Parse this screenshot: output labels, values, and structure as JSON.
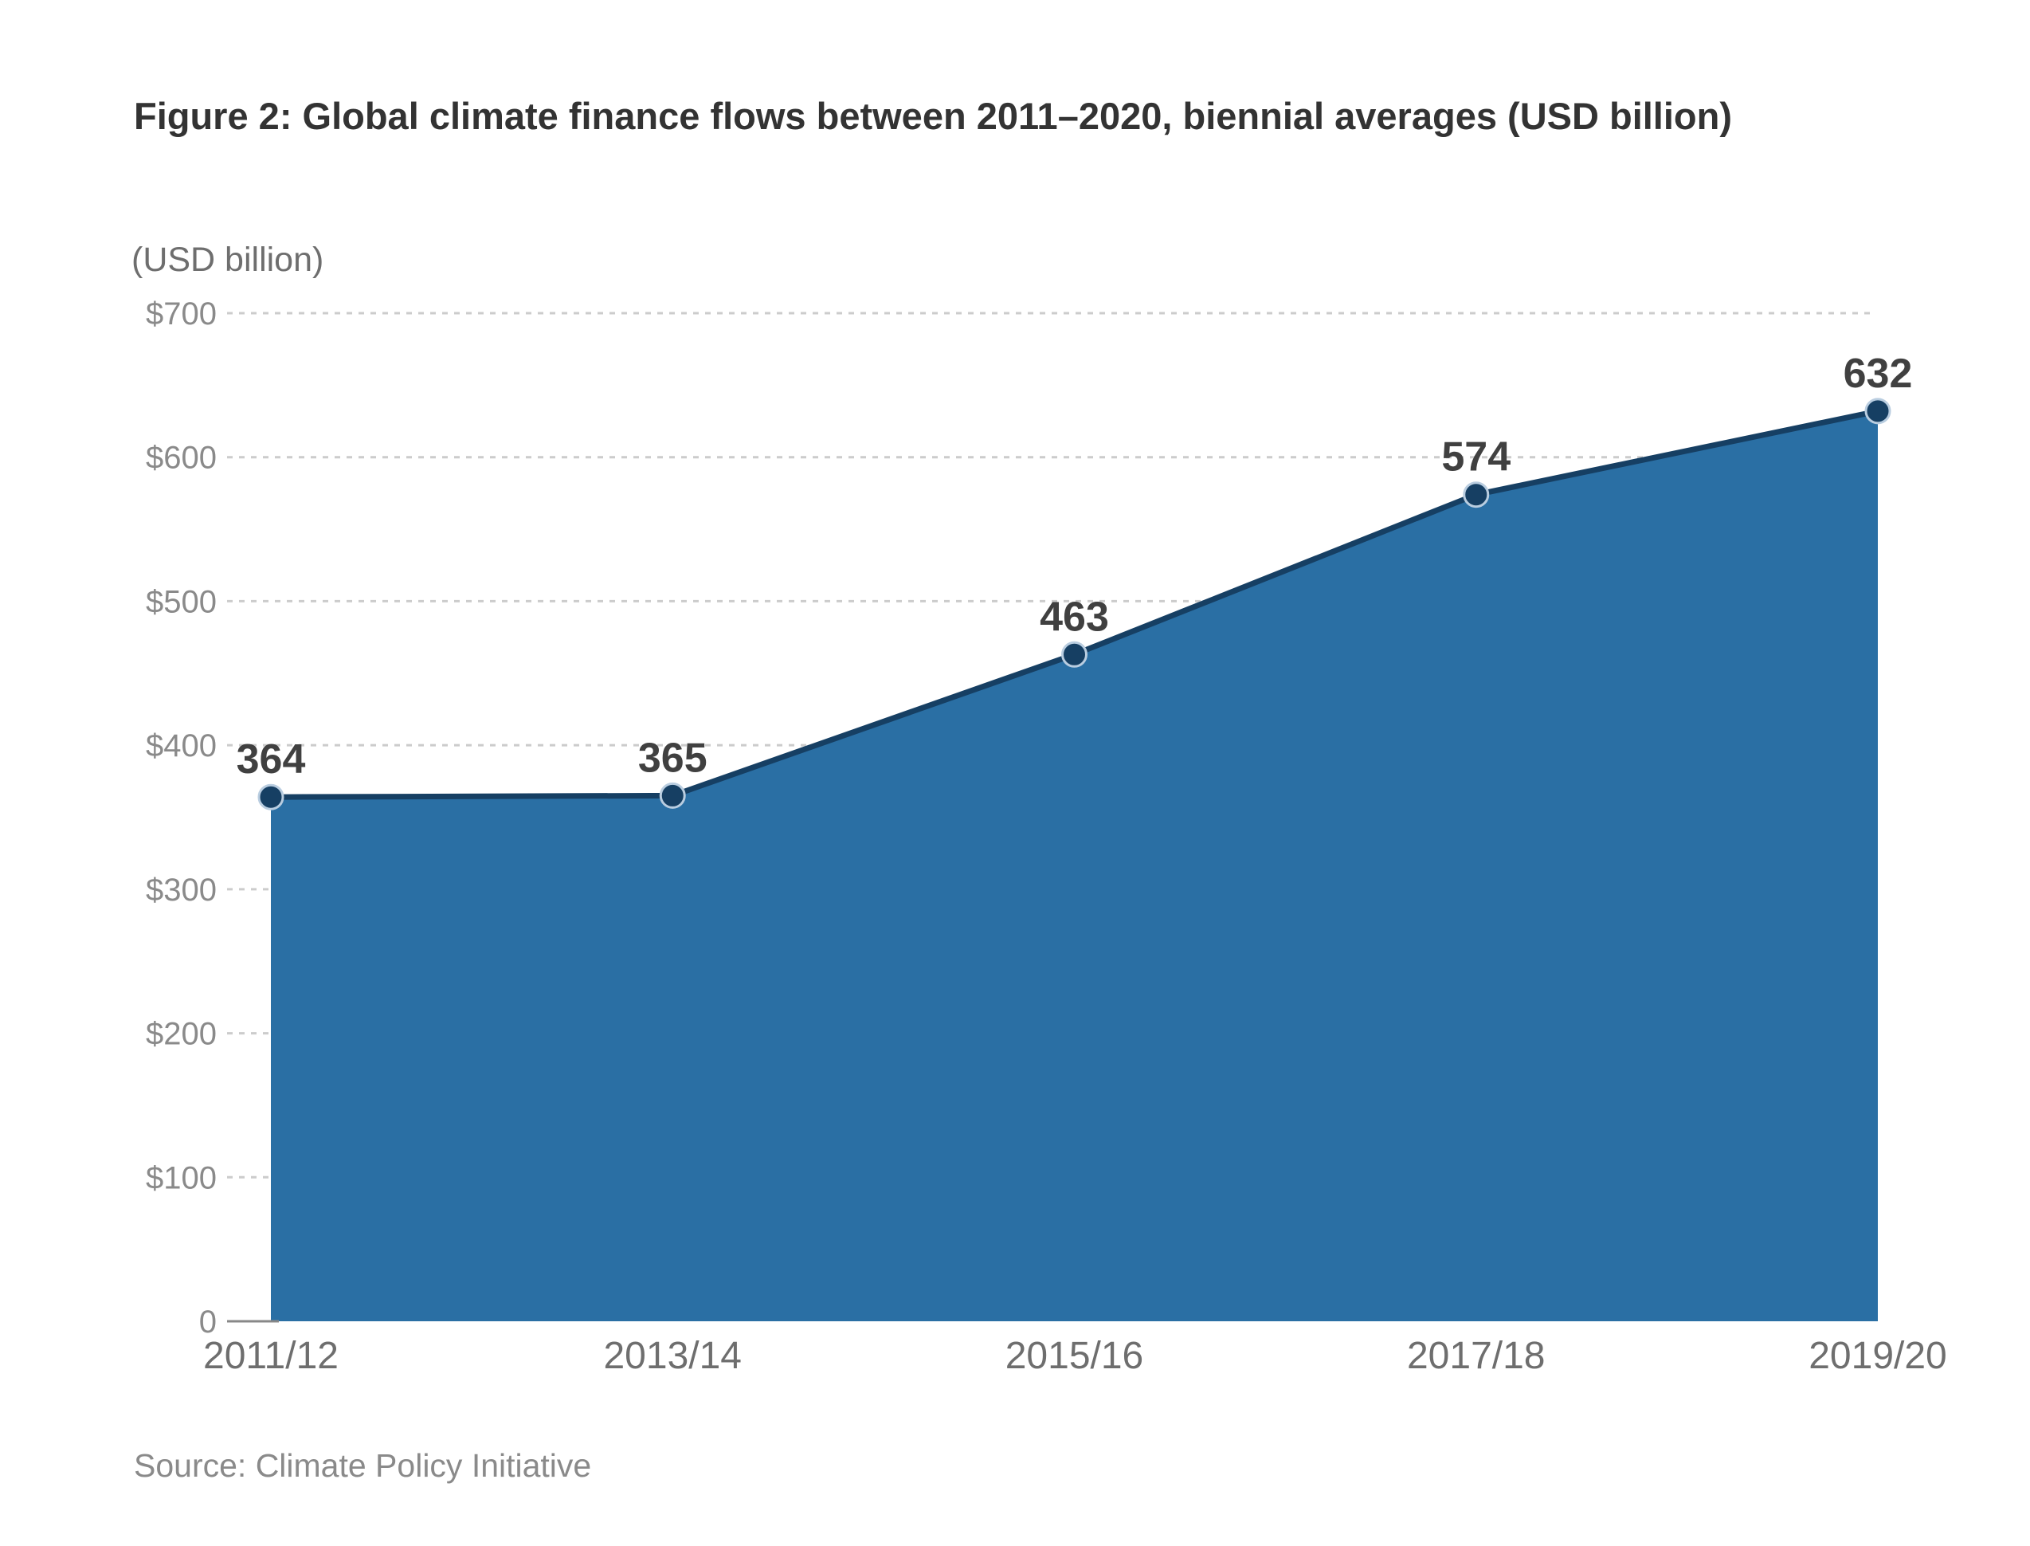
{
  "title": "Figure 2: Global climate finance flows between 2011–2020, biennial averages (USD billion)",
  "source": "Source: Climate Policy Initiative",
  "chart_data": {
    "type": "area",
    "title": "Figure 2: Global climate finance flows between 2011–2020, biennial averages (USD billion)",
    "ylabel": "(USD billion)",
    "xlabel": "",
    "categories": [
      "2011/12",
      "2013/14",
      "2015/16",
      "2017/18",
      "2019/20"
    ],
    "values": [
      364,
      365,
      463,
      574,
      632
    ],
    "data_labels": [
      "364",
      "365",
      "463",
      "574",
      "632"
    ],
    "ylim": [
      0,
      700
    ],
    "yticks": [
      0,
      100,
      200,
      300,
      400,
      500,
      600,
      700
    ],
    "ytick_labels": [
      "0",
      "$100",
      "$200",
      "$300",
      "$400",
      "$500",
      "$600",
      "$700"
    ],
    "grid": "horizontal-dashed",
    "legend": "none",
    "colors": {
      "fill": "#2a6fa4",
      "line": "#163f63",
      "marker": "#163f63",
      "marker_stroke": "#b9cde0",
      "grid": "#cccccc",
      "tick_text": "#8a8a8a",
      "category_text": "#6e6e6e",
      "data_label_text": "#404040",
      "baseline": "#888888"
    }
  }
}
